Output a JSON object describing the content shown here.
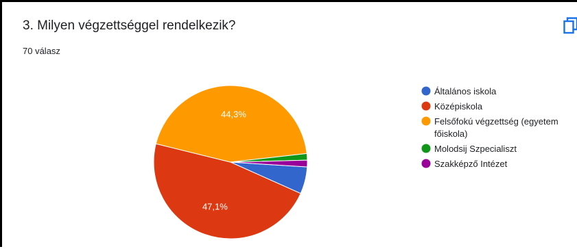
{
  "question": {
    "title": "3. Milyen végzettséggel rendelkezik?",
    "responses": "70 válasz"
  },
  "icons": {
    "copy": "copy-icon"
  },
  "colors": {
    "accent": "#1a73e8"
  },
  "chart_data": {
    "type": "pie",
    "title": "",
    "slices": [
      {
        "label": "Általános iskola",
        "value": 5.7,
        "color": "#3366cc",
        "show_label": false,
        "display": ""
      },
      {
        "label": "Középiskola",
        "value": 47.1,
        "color": "#dc3912",
        "show_label": true,
        "display": "47,1%"
      },
      {
        "label": "Felsőfokú végzettség (egyetem, főiskola)",
        "legend_lines": [
          "Felsőfokú végzettség (egyetem",
          "főiskola)"
        ],
        "value": 44.3,
        "color": "#ff9900",
        "show_label": true,
        "display": "44,3%"
      },
      {
        "label": "Molodsij Szpecialiszt",
        "value": 1.4,
        "color": "#109618",
        "show_label": false,
        "display": ""
      },
      {
        "label": "Szakképző Intézet",
        "value": 1.4,
        "color": "#990099",
        "show_label": false,
        "display": ""
      }
    ],
    "legend_position": "right"
  }
}
